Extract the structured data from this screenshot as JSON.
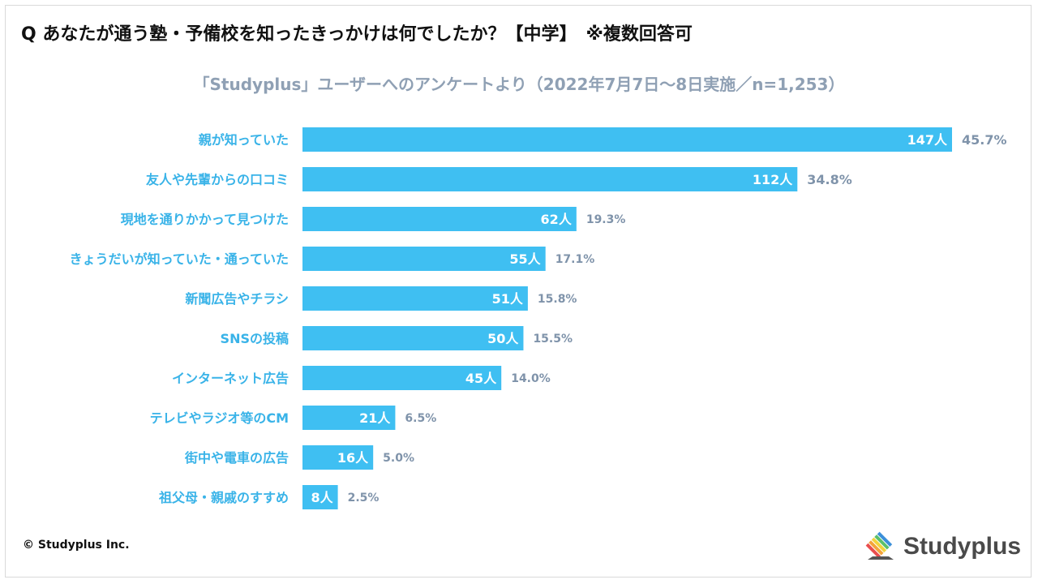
{
  "question": "Q あなたが通う塾・予備校を知ったきっかけは何でしたか？【中学】　※複数回答可",
  "subtitle": "「Studyplus」ユーザーへのアンケートより（2022年7月7日〜8日実施／n=1,253）",
  "copyright": "© Studyplus Inc.",
  "logo_text": "Studyplus",
  "colors": {
    "bar": "#3fbff2",
    "label": "#39b3e8",
    "bar_text": "#ffffff",
    "pct": "#7f93aa"
  },
  "chart_data": {
    "type": "bar",
    "orientation": "horizontal",
    "title": "Q あなたが通う塾・予備校を知ったきっかけは何でしたか？【中学】　※複数回答可",
    "subtitle": "「Studyplus」ユーザーへのアンケートより（2022年7月7日〜8日実施／n=1,253）",
    "categories": [
      "親が知っていた",
      "友人や先輩からの口コミ",
      "現地を通りかかって見つけた",
      "きょうだいが知っていた・通っていた",
      "新聞広告やチラシ",
      "SNSの投稿",
      "インターネット広告",
      "テレビやラジオ等のCM",
      "街中や電車の広告",
      "祖父母・親戚のすすめ"
    ],
    "values": [
      147,
      112,
      62,
      55,
      51,
      50,
      45,
      21,
      16,
      8
    ],
    "value_labels": [
      "147人",
      "112人",
      "62人",
      "55人",
      "51人",
      "50人",
      "45人",
      "21人",
      "16人",
      "8人"
    ],
    "percent_labels": [
      "45.7%",
      "34.8%",
      "19.3%",
      "17.1%",
      "15.8%",
      "15.5%",
      "14.0%",
      "6.5%",
      "5.0%",
      "2.5%"
    ],
    "xlim": [
      0,
      147
    ],
    "grid": false,
    "legend": "none"
  }
}
